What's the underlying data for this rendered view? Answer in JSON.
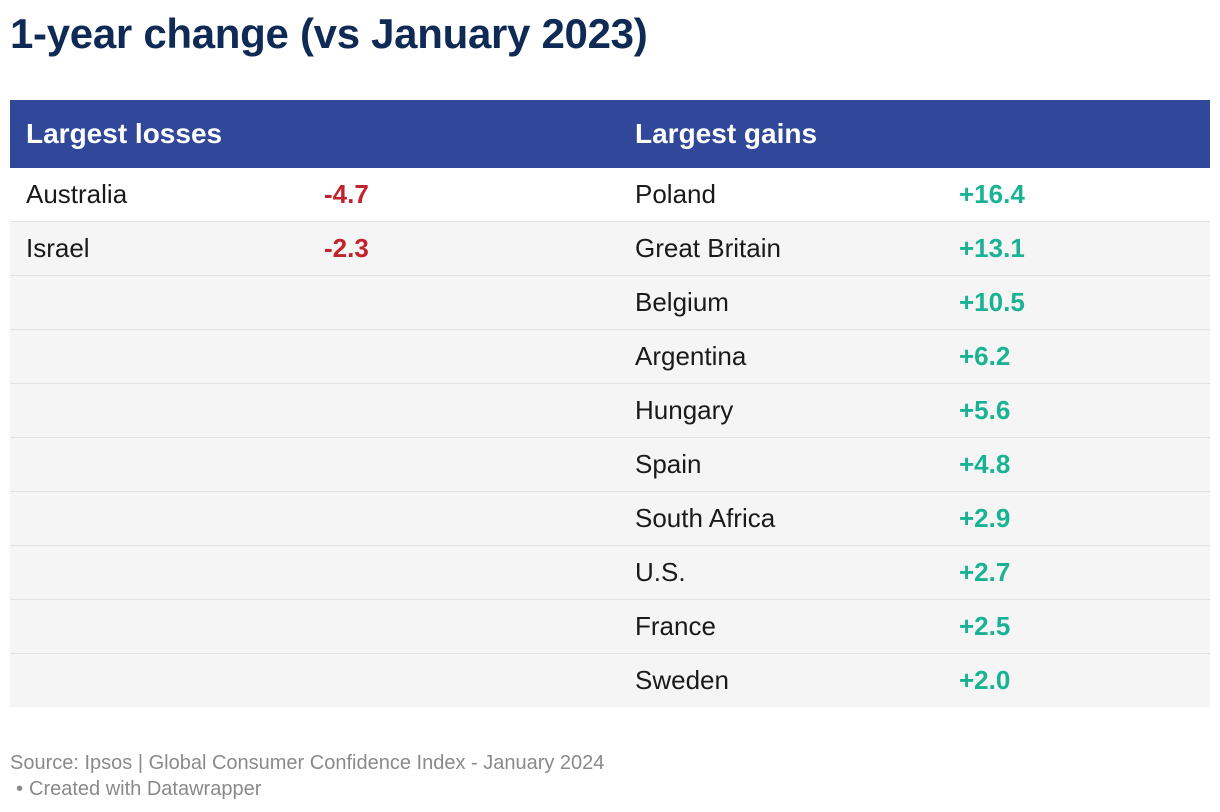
{
  "title": "1-year change (vs January 2023)",
  "colors": {
    "title": "#0f2a55",
    "header_bg": "#30479a",
    "loss": "#c0232b",
    "gain": "#19b393"
  },
  "chart_data": {
    "type": "table",
    "title": "1-year change (vs January 2023)",
    "columns": [
      "Largest losses",
      "",
      "Largest gains",
      ""
    ],
    "losses": [
      {
        "country": "Australia",
        "value": "-4.7"
      },
      {
        "country": "Israel",
        "value": "-2.3"
      }
    ],
    "gains": [
      {
        "country": "Poland",
        "value": "+16.4"
      },
      {
        "country": "Great Britain",
        "value": "+13.1"
      },
      {
        "country": "Belgium",
        "value": "+10.5"
      },
      {
        "country": "Argentina",
        "value": "+6.2"
      },
      {
        "country": "Hungary",
        "value": "+5.6"
      },
      {
        "country": "Spain",
        "value": "+4.8"
      },
      {
        "country": "South Africa",
        "value": "+2.9"
      },
      {
        "country": "U.S.",
        "value": "+2.7"
      },
      {
        "country": "France",
        "value": "+2.5"
      },
      {
        "country": "Sweden",
        "value": "+2.0"
      }
    ]
  },
  "header": {
    "losses_label": "Largest losses",
    "gains_label": "Largest gains"
  },
  "footer": {
    "source": "Source: Ipsos | Global Consumer Confidence Index - January 2024",
    "dot": "•",
    "credit": "Created with Datawrapper"
  }
}
